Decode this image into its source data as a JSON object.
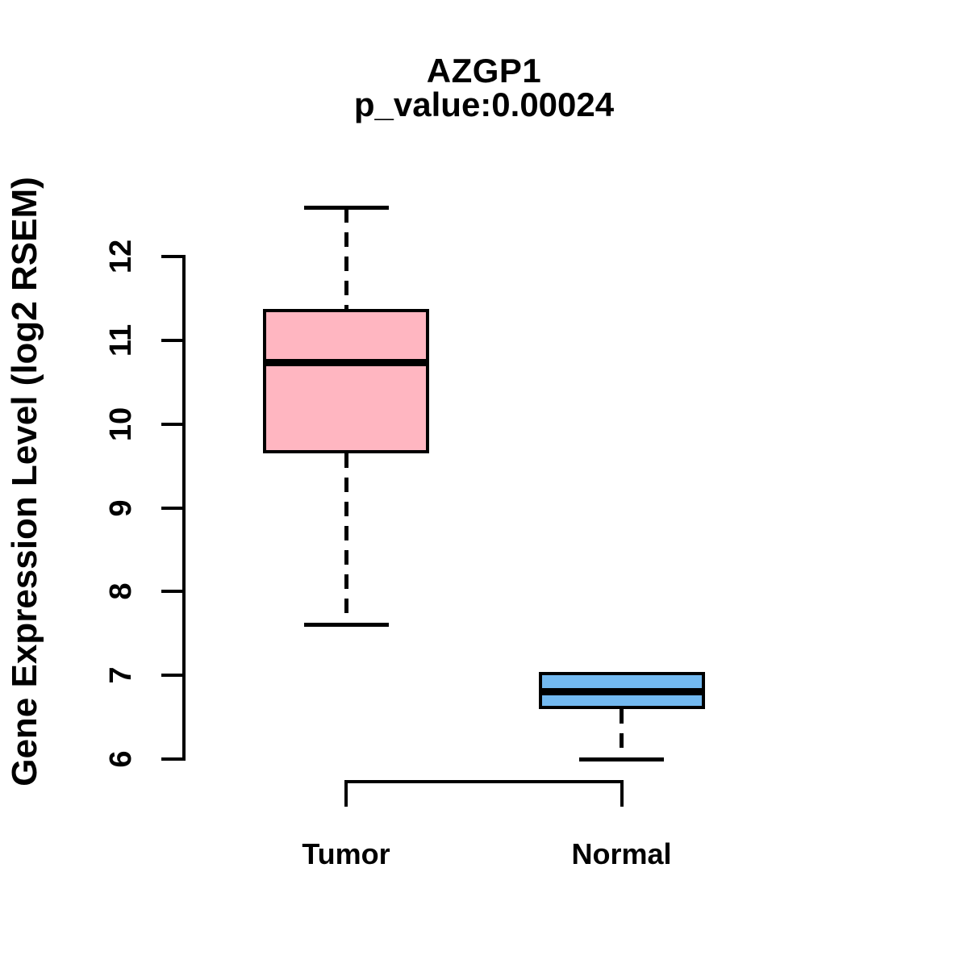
{
  "page": {
    "background_color": "#ffffff",
    "foreground_color": "#000000"
  },
  "chart_data": {
    "type": "boxplot",
    "title": "AZGP1",
    "subtitle": "p_value:0.00024",
    "gene": "AZGP1",
    "p_value": 0.00024,
    "ylabel": "Gene Expression Level (log2 RSEM)",
    "xlabel": "",
    "ylim": [
      6,
      12.6
    ],
    "yticks": [
      6,
      7,
      8,
      9,
      10,
      11,
      12
    ],
    "grid": false,
    "legend_position": "none",
    "whisker_style": "dashed",
    "categories": [
      "Tumor",
      "Normal"
    ],
    "series": [
      {
        "name": "Tumor",
        "box_color": "#FFB6C1",
        "border_color": "#000000",
        "whisker_low": 7.6,
        "q1": 9.65,
        "median": 10.73,
        "q3": 11.37,
        "whisker_high": 12.58
      },
      {
        "name": "Normal",
        "box_color": "#73B9F0",
        "border_color": "#000000",
        "whisker_low": 6.0,
        "q1": 6.6,
        "median": 6.8,
        "q3": 7.04,
        "whisker_high": 7.04
      }
    ],
    "x_axis_bracket": {
      "from": "Tumor",
      "to": "Normal"
    }
  }
}
